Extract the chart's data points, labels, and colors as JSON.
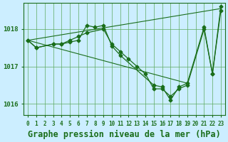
{
  "hours": [
    0,
    1,
    2,
    3,
    4,
    5,
    6,
    7,
    8,
    9,
    10,
    11,
    12,
    13,
    14,
    15,
    16,
    17,
    18,
    19,
    20,
    21,
    22,
    23
  ],
  "series1": [
    1017.7,
    1017.5,
    null,
    1017.6,
    1017.6,
    1017.7,
    1017.8,
    1017.9,
    null,
    1018.0,
    1017.6,
    1017.4,
    1017.2,
    1017.0,
    1016.8,
    1016.4,
    1016.4,
    1016.2,
    1016.4,
    1016.5,
    null,
    1018.0,
    1016.8,
    1018.5
  ],
  "series2": [
    1017.7,
    1017.5,
    null,
    1017.6,
    1017.6,
    1017.65,
    1017.7,
    1018.1,
    1018.05,
    1018.1,
    1017.55,
    1017.3,
    null,
    null,
    null,
    1016.5,
    1016.45,
    1016.1,
    1016.45,
    1016.55,
    null,
    1018.05,
    1016.8,
    1018.6
  ],
  "line1_x": [
    0,
    23
  ],
  "line1_y": [
    1017.7,
    1018.55
  ],
  "line2_x": [
    0,
    19
  ],
  "line2_y": [
    1017.7,
    1016.55
  ],
  "main_color": "#1a6e1a",
  "bg_color": "#cceeff",
  "grid_color": "#5daa5d",
  "title": "Graphe pression niveau de la mer (hPa)",
  "ylim_min": 1015.7,
  "ylim_max": 1018.7,
  "yticks": [
    1016,
    1017,
    1018
  ],
  "xlim_min": -0.5,
  "xlim_max": 23.5,
  "title_fontsize": 8.5
}
